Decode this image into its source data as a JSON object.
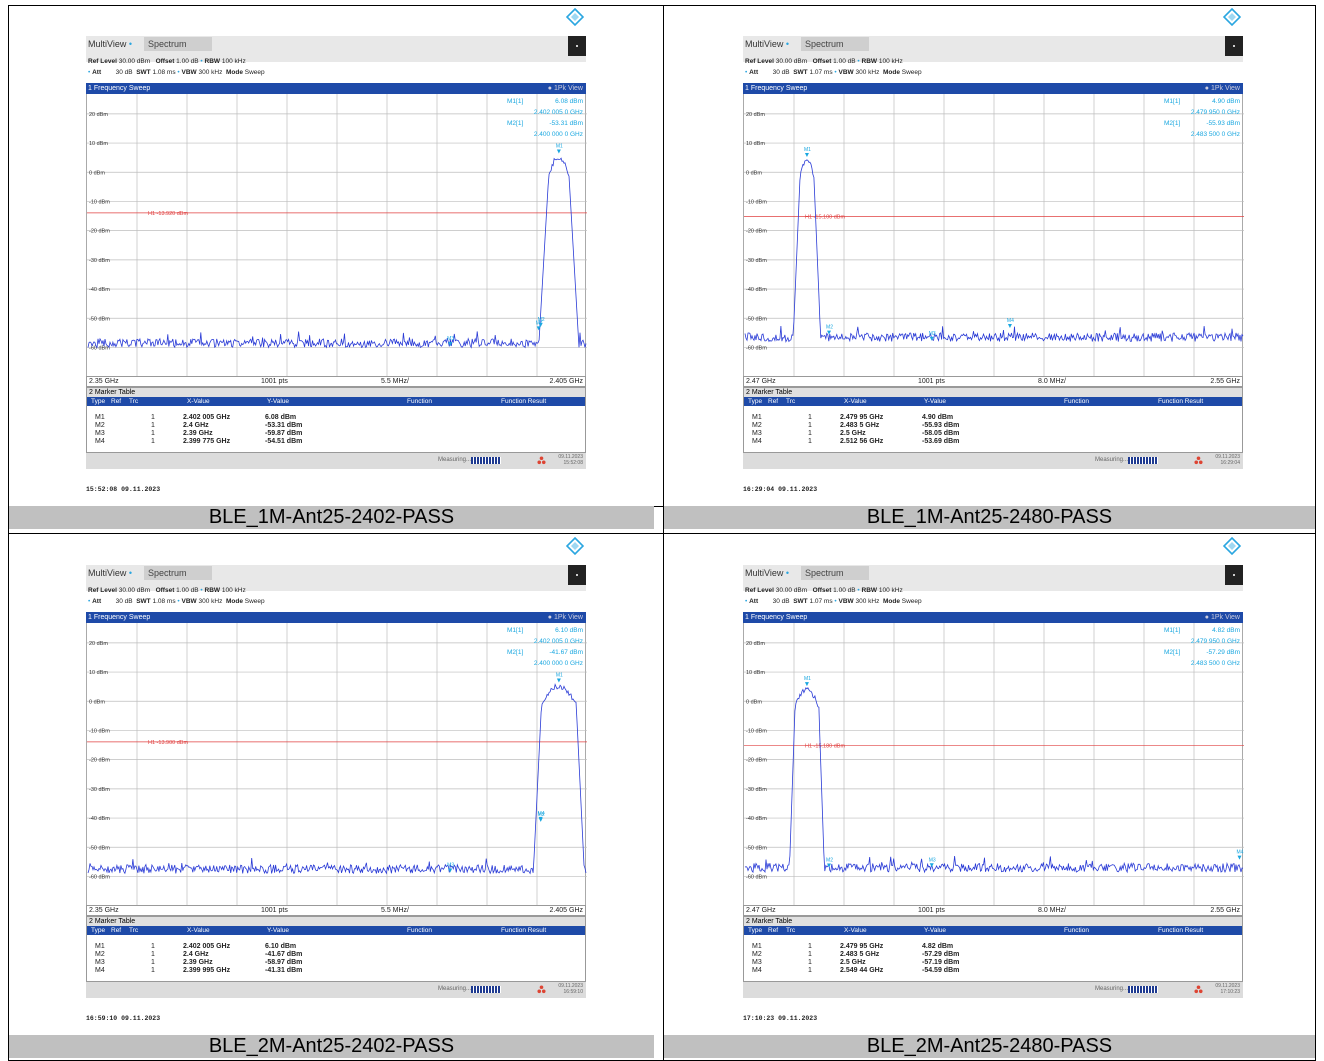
{
  "panels": [
    {
      "caption": "BLE_1M-Ant25-2402-PASS",
      "app": {
        "multiview": "MultiView",
        "spectrum": "Spectrum"
      },
      "settings": {
        "ref_level": "Ref Level",
        "ref_level_val": "30.00 dBm",
        "offset": "Offset",
        "offset_val": "1.00 dB",
        "rbw": "RBW",
        "rbw_val": "100 kHz",
        "att": "Att",
        "att_val": "30 dB",
        "swt": "SWT",
        "swt_val": "1.08 ms",
        "vbw": "VBW",
        "vbw_val": "300 kHz",
        "mode": "Mode",
        "mode_val": "Sweep"
      },
      "sweep_title": "1 Frequency Sweep",
      "view_label": "1Pk View",
      "marker_readout": [
        [
          "M1[1]",
          "6.08 dBm",
          "2.402 005 0 GHz"
        ],
        [
          "M2[1]",
          "-53.31 dBm",
          "2.400 000 0 GHz"
        ]
      ],
      "x_start": "2.35 GHz",
      "x_pts": "1001 pts",
      "x_div": "5.5 MHz/",
      "x_stop": "2.405 GHz",
      "table": {
        "title": "2 Marker Table",
        "headers": [
          "Type",
          "Ref",
          "Trc",
          "X-Value",
          "Y-Value",
          "Function",
          "Function Result"
        ],
        "rows": [
          [
            "M1",
            "1",
            "2.402 005 GHz",
            "6.08 dBm"
          ],
          [
            "M2",
            "1",
            "2.4 GHz",
            "-53.31 dBm"
          ],
          [
            "M3",
            "1",
            "2.39 GHz",
            "-59.87 dBm"
          ],
          [
            "M4",
            "1",
            "2.399 775 GHz",
            "-54.51 dBm"
          ]
        ]
      },
      "status": {
        "measuring": "Measuring...",
        "date": "09.11.2023",
        "time": "15:52:08"
      },
      "timestamp": "15:52:08  09.11.2023"
    },
    {
      "caption": "BLE_1M-Ant25-2480-PASS",
      "app": {
        "multiview": "MultiView",
        "spectrum": "Spectrum"
      },
      "settings": {
        "ref_level": "Ref Level",
        "ref_level_val": "30.00 dBm",
        "offset": "Offset",
        "offset_val": "1.00 dB",
        "rbw": "RBW",
        "rbw_val": "100 kHz",
        "att": "Att",
        "att_val": "30 dB",
        "swt": "SWT",
        "swt_val": "1.07 ms",
        "vbw": "VBW",
        "vbw_val": "300 kHz",
        "mode": "Mode",
        "mode_val": "Sweep"
      },
      "sweep_title": "1 Frequency Sweep",
      "view_label": "1Pk View",
      "marker_readout": [
        [
          "M1[1]",
          "4.90 dBm",
          "2.479 950 0 GHz"
        ],
        [
          "M2[1]",
          "-55.93 dBm",
          "2.483 500 0 GHz"
        ]
      ],
      "x_start": "2.47 GHz",
      "x_pts": "1001 pts",
      "x_div": "8.0 MHz/",
      "x_stop": "2.55 GHz",
      "table": {
        "title": "2 Marker Table",
        "headers": [
          "Type",
          "Ref",
          "Trc",
          "X-Value",
          "Y-Value",
          "Function",
          "Function Result"
        ],
        "rows": [
          [
            "M1",
            "1",
            "2.479 95 GHz",
            "4.90 dBm"
          ],
          [
            "M2",
            "1",
            "2.483 5 GHz",
            "-55.93 dBm"
          ],
          [
            "M3",
            "1",
            "2.5 GHz",
            "-58.05 dBm"
          ],
          [
            "M4",
            "1",
            "2.512 56 GHz",
            "-53.69 dBm"
          ]
        ]
      },
      "status": {
        "measuring": "Measuring...",
        "date": "09.11.2023",
        "time": "16:29:04"
      },
      "timestamp": "16:29:04  09.11.2023"
    },
    {
      "caption": "BLE_2M-Ant25-2402-PASS",
      "app": {
        "multiview": "MultiView",
        "spectrum": "Spectrum"
      },
      "settings": {
        "ref_level": "Ref Level",
        "ref_level_val": "30.00 dBm",
        "offset": "Offset",
        "offset_val": "1.00 dB",
        "rbw": "RBW",
        "rbw_val": "100 kHz",
        "att": "Att",
        "att_val": "30 dB",
        "swt": "SWT",
        "swt_val": "1.08 ms",
        "vbw": "VBW",
        "vbw_val": "300 kHz",
        "mode": "Mode",
        "mode_val": "Sweep"
      },
      "sweep_title": "1 Frequency Sweep",
      "view_label": "1Pk View",
      "marker_readout": [
        [
          "M1[1]",
          "6.10 dBm",
          "2.402 005 0 GHz"
        ],
        [
          "M2[1]",
          "-41.67 dBm",
          "2.400 000 0 GHz"
        ]
      ],
      "x_start": "2.35 GHz",
      "x_pts": "1001 pts",
      "x_div": "5.5 MHz/",
      "x_stop": "2.405 GHz",
      "table": {
        "title": "2 Marker Table",
        "headers": [
          "Type",
          "Ref",
          "Trc",
          "X-Value",
          "Y-Value",
          "Function",
          "Function Result"
        ],
        "rows": [
          [
            "M1",
            "1",
            "2.402 005 GHz",
            "6.10 dBm"
          ],
          [
            "M2",
            "1",
            "2.4 GHz",
            "-41.67 dBm"
          ],
          [
            "M3",
            "1",
            "2.39 GHz",
            "-58.97 dBm"
          ],
          [
            "M4",
            "1",
            "2.399 995 GHz",
            "-41.31 dBm"
          ]
        ]
      },
      "status": {
        "measuring": "Measuring...",
        "date": "09.11.2023",
        "time": "16:59:10"
      },
      "timestamp": "16:59:10  09.11.2023"
    },
    {
      "caption": "BLE_2M-Ant25-2480-PASS",
      "app": {
        "multiview": "MultiView",
        "spectrum": "Spectrum"
      },
      "settings": {
        "ref_level": "Ref Level",
        "ref_level_val": "30.00 dBm",
        "offset": "Offset",
        "offset_val": "1.00 dB",
        "rbw": "RBW",
        "rbw_val": "100 kHz",
        "att": "Att",
        "att_val": "30 dB",
        "swt": "SWT",
        "swt_val": "1.07 ms",
        "vbw": "VBW",
        "vbw_val": "300 kHz",
        "mode": "Mode",
        "mode_val": "Sweep"
      },
      "sweep_title": "1 Frequency Sweep",
      "view_label": "1Pk View",
      "marker_readout": [
        [
          "M1[1]",
          "4.82 dBm",
          "2.479 950 0 GHz"
        ],
        [
          "M2[1]",
          "-57.29 dBm",
          "2.483 500 0 GHz"
        ]
      ],
      "x_start": "2.47 GHz",
      "x_pts": "1001 pts",
      "x_div": "8.0 MHz/",
      "x_stop": "2.55 GHz",
      "table": {
        "title": "2 Marker Table",
        "headers": [
          "Type",
          "Ref",
          "Trc",
          "X-Value",
          "Y-Value",
          "Function",
          "Function Result"
        ],
        "rows": [
          [
            "M1",
            "1",
            "2.479 95 GHz",
            "4.82 dBm"
          ],
          [
            "M2",
            "1",
            "2.483 5 GHz",
            "-57.29 dBm"
          ],
          [
            "M3",
            "1",
            "2.5 GHz",
            "-57.19 dBm"
          ],
          [
            "M4",
            "1",
            "2.549 44 GHz",
            "-54.59 dBm"
          ]
        ]
      },
      "status": {
        "measuring": "Measuring...",
        "date": "09.11.2023",
        "time": "17:10:23"
      },
      "timestamp": "17:10:23  09.11.2023"
    }
  ],
  "chart_data": [
    {
      "type": "line",
      "y_ticks": [
        "20 dBm",
        "10 dBm",
        "0 dBm",
        "-10 dBm",
        "-20 dBm",
        "-30 dBm",
        "-40 dBm",
        "-50 dBm",
        "-60 dBm"
      ],
      "xlim": [
        2.35,
        2.405
      ],
      "ylim": [
        -70,
        30
      ],
      "threshold": {
        "label": "H1 -13.920 dBm",
        "value": -13.92
      },
      "noise_floor": -58.5,
      "peak": {
        "center": 2.402,
        "level": 6.08,
        "half_width": 0.0011,
        "skirt": 0.0022
      },
      "markers": [
        {
          "label": "M1",
          "x": 2.402005,
          "y": 6.08
        },
        {
          "label": "M2",
          "x": 2.4,
          "y": -53.31
        },
        {
          "label": "M3",
          "x": 2.39,
          "y": -59.87
        },
        {
          "label": "M4",
          "x": 2.399775,
          "y": -54.51
        }
      ],
      "trace_color": "#2a3bd6",
      "threshold_color": "#e04040",
      "marker_color": "#19a7e0"
    },
    {
      "type": "line",
      "y_ticks": [
        "20 dBm",
        "10 dBm",
        "0 dBm",
        "-10 dBm",
        "-20 dBm",
        "-30 dBm",
        "-40 dBm",
        "-50 dBm",
        "-60 dBm"
      ],
      "xlim": [
        2.47,
        2.55
      ],
      "ylim": [
        -70,
        30
      ],
      "threshold": {
        "label": "H1 -15.100 dBm",
        "value": -15.1
      },
      "noise_floor": -56.5,
      "peak": {
        "center": 2.47995,
        "level": 4.9,
        "half_width": 0.0011,
        "skirt": 0.0022
      },
      "markers": [
        {
          "label": "M1",
          "x": 2.47995,
          "y": 4.9
        },
        {
          "label": "M2",
          "x": 2.4835,
          "y": -55.93
        },
        {
          "label": "M3",
          "x": 2.5,
          "y": -58.05
        },
        {
          "label": "M4",
          "x": 2.51256,
          "y": -53.69
        }
      ],
      "trace_color": "#2a3bd6",
      "threshold_color": "#e04040",
      "marker_color": "#19a7e0"
    },
    {
      "type": "line",
      "y_ticks": [
        "20 dBm",
        "10 dBm",
        "0 dBm",
        "-10 dBm",
        "-20 dBm",
        "-30 dBm",
        "-40 dBm",
        "-50 dBm",
        "-60 dBm"
      ],
      "xlim": [
        2.35,
        2.405
      ],
      "ylim": [
        -70,
        30
      ],
      "threshold": {
        "label": "H1 -13.900 dBm",
        "value": -13.9
      },
      "noise_floor": -57.5,
      "peak": {
        "center": 2.402,
        "level": 6.1,
        "half_width": 0.0019,
        "skirt": 0.0028
      },
      "markers": [
        {
          "label": "M1",
          "x": 2.402005,
          "y": 6.1
        },
        {
          "label": "M2",
          "x": 2.4,
          "y": -41.67
        },
        {
          "label": "M3",
          "x": 2.39,
          "y": -58.97
        },
        {
          "label": "M4",
          "x": 2.399995,
          "y": -41.31
        }
      ],
      "trace_color": "#2a3bd6",
      "threshold_color": "#e04040",
      "marker_color": "#19a7e0"
    },
    {
      "type": "line",
      "y_ticks": [
        "20 dBm",
        "10 dBm",
        "0 dBm",
        "-10 dBm",
        "-20 dBm",
        "-30 dBm",
        "-40 dBm",
        "-50 dBm",
        "-60 dBm"
      ],
      "xlim": [
        2.47,
        2.55
      ],
      "ylim": [
        -70,
        30
      ],
      "threshold": {
        "label": "H1 -15.180 dBm",
        "value": -15.18
      },
      "noise_floor": -57.0,
      "peak": {
        "center": 2.47995,
        "level": 4.82,
        "half_width": 0.0019,
        "skirt": 0.0028
      },
      "markers": [
        {
          "label": "M1",
          "x": 2.47995,
          "y": 4.82
        },
        {
          "label": "M2",
          "x": 2.4835,
          "y": -57.29
        },
        {
          "label": "M3",
          "x": 2.5,
          "y": -57.19
        },
        {
          "label": "M4",
          "x": 2.54944,
          "y": -54.59
        }
      ],
      "trace_color": "#2a3bd6",
      "threshold_color": "#e04040",
      "marker_color": "#19a7e0"
    }
  ]
}
